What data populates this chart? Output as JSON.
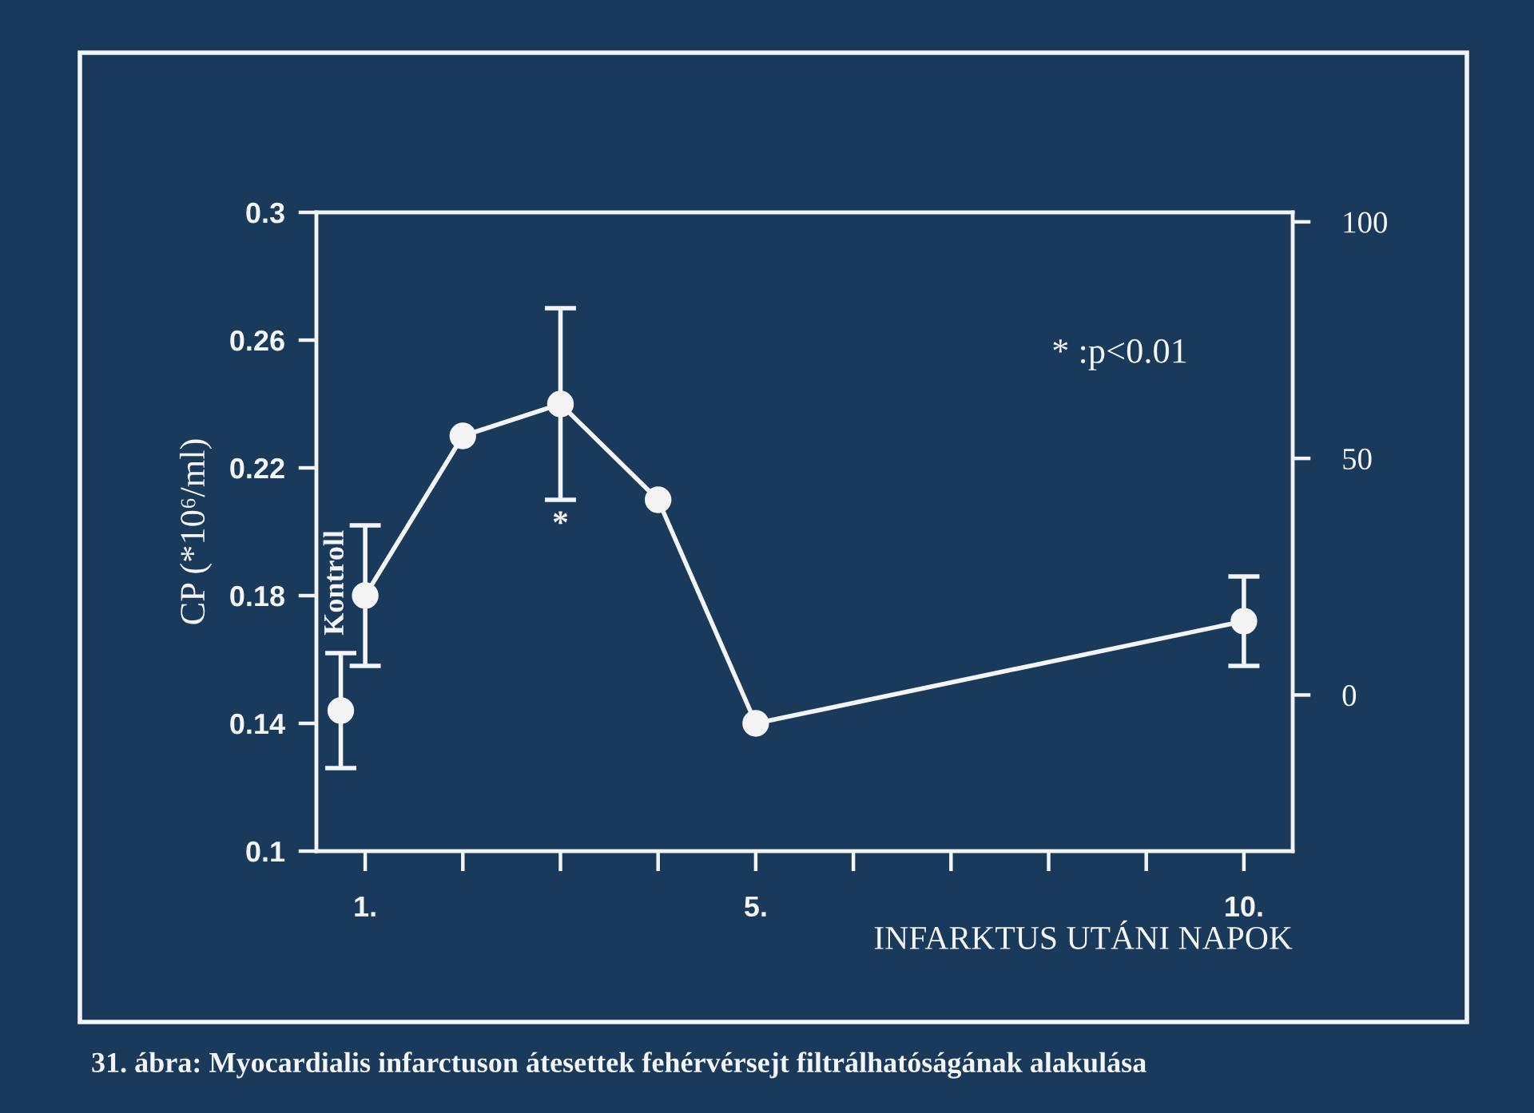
{
  "chart_data": {
    "type": "line",
    "ylabel": "CP (*10⁶/ml)",
    "xlabel": "INFARKTUS UTÁNI NAPOK",
    "annotations": [
      "* :p<0.01",
      "*",
      "31. ábra: Myocardialis infarctuson átesettek fehérvérsejt filtrálhatóságának alakulása"
    ],
    "xlim": [
      0.5,
      10.5
    ],
    "xticks": [
      {
        "value": 1,
        "label": "1."
      },
      {
        "value": 2,
        "label": null
      },
      {
        "value": 3,
        "label": null
      },
      {
        "value": 4,
        "label": null
      },
      {
        "value": 5,
        "label": "5."
      },
      {
        "value": 6,
        "label": null
      },
      {
        "value": 7,
        "label": null
      },
      {
        "value": 8,
        "label": null
      },
      {
        "value": 9,
        "label": null
      },
      {
        "value": 10,
        "label": "10."
      }
    ],
    "ylim": [
      0.1,
      0.3
    ],
    "yticks": [
      0.1,
      0.14,
      0.18,
      0.22,
      0.26,
      0.3
    ],
    "y2lim": [
      -33,
      102
    ],
    "y2ticks": [
      0,
      50,
      100
    ],
    "marker": "circle",
    "line_style": "solid",
    "grid": false,
    "series": [
      {
        "name": "Kontroll",
        "type": "scatter",
        "color": "#f4f4f4",
        "x": [
          0.75
        ],
        "values": [
          0.144
        ],
        "errors": [
          0.018
        ]
      },
      {
        "color": "#f4f4f4",
        "x": [
          1,
          2,
          3,
          4,
          5,
          10
        ],
        "values": [
          0.18,
          0.23,
          0.24,
          0.21,
          0.14,
          0.172
        ],
        "errors": [
          0.022,
          null,
          0.03,
          null,
          null,
          0.014
        ]
      }
    ]
  }
}
